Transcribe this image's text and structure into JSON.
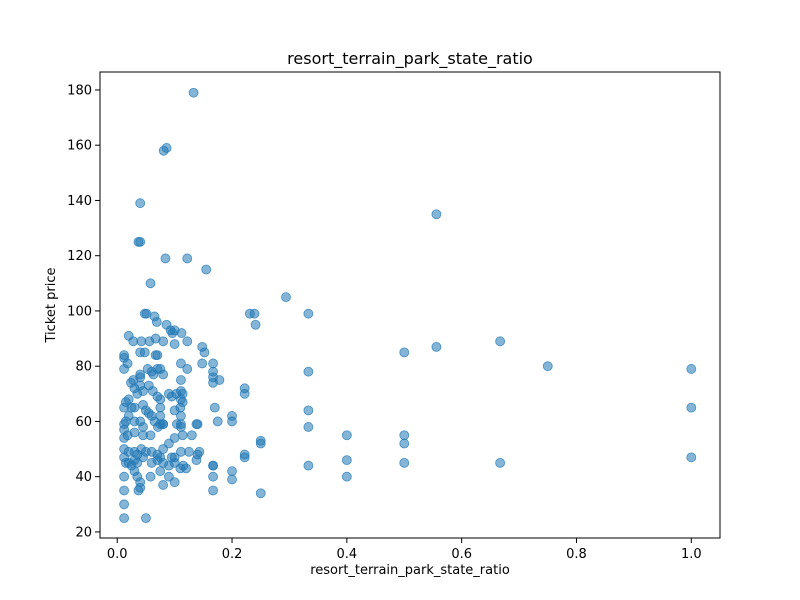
{
  "chart_data": {
    "type": "scatter",
    "title": "resort_terrain_park_state_ratio",
    "xlabel": "resort_terrain_park_state_ratio",
    "ylabel": "Ticket price",
    "xlim": [
      -0.03,
      1.05
    ],
    "ylim": [
      17.8,
      186.5
    ],
    "xticks": [
      0.0,
      0.2,
      0.4,
      0.6,
      0.8,
      1.0
    ],
    "xtick_labels": [
      "0.0",
      "0.2",
      "0.4",
      "0.6",
      "0.8",
      "1.0"
    ],
    "yticks": [
      20,
      40,
      60,
      80,
      100,
      120,
      140,
      160,
      180
    ],
    "ytick_labels": [
      "20",
      "40",
      "60",
      "80",
      "100",
      "120",
      "140",
      "160",
      "180"
    ],
    "grid": false,
    "point_color": "#1f77b4",
    "point_alpha": 0.55,
    "series": [
      {
        "points": [
          [
            0.133,
            179
          ],
          [
            0.081,
            158
          ],
          [
            0.086,
            159
          ],
          [
            0.04,
            139
          ],
          [
            0.556,
            135
          ],
          [
            0.037,
            125
          ],
          [
            0.04,
            125
          ],
          [
            0.084,
            119
          ],
          [
            0.122,
            119
          ],
          [
            0.155,
            115
          ],
          [
            0.058,
            110
          ],
          [
            0.294,
            105
          ],
          [
            0.231,
            99
          ],
          [
            0.239,
            99
          ],
          [
            0.333,
            99
          ],
          [
            0.048,
            99
          ],
          [
            0.051,
            99
          ],
          [
            0.241,
            95
          ],
          [
            0.065,
            98
          ],
          [
            0.069,
            96
          ],
          [
            0.086,
            95
          ],
          [
            0.093,
            93
          ],
          [
            0.096,
            92
          ],
          [
            0.1,
            93
          ],
          [
            0.112,
            92
          ],
          [
            0.02,
            91
          ],
          [
            0.028,
            89
          ],
          [
            0.042,
            89
          ],
          [
            0.056,
            89
          ],
          [
            0.067,
            90
          ],
          [
            0.08,
            89
          ],
          [
            0.1,
            88
          ],
          [
            0.122,
            89
          ],
          [
            0.148,
            87
          ],
          [
            0.152,
            85
          ],
          [
            0.667,
            89
          ],
          [
            0.556,
            87
          ],
          [
            0.5,
            85
          ],
          [
            0.75,
            80
          ],
          [
            1.0,
            79
          ],
          [
            0.012,
            84
          ],
          [
            0.012,
            83
          ],
          [
            0.04,
            85
          ],
          [
            0.048,
            85
          ],
          [
            0.067,
            84
          ],
          [
            0.07,
            84
          ],
          [
            0.111,
            81
          ],
          [
            0.148,
            81
          ],
          [
            0.167,
            81
          ],
          [
            0.333,
            78
          ],
          [
            0.018,
            81
          ],
          [
            0.012,
            79
          ],
          [
            0.028,
            75
          ],
          [
            0.024,
            74
          ],
          [
            0.04,
            77
          ],
          [
            0.04,
            76
          ],
          [
            0.053,
            79
          ],
          [
            0.06,
            78
          ],
          [
            0.063,
            77
          ],
          [
            0.075,
            79
          ],
          [
            0.08,
            77
          ],
          [
            0.07,
            79
          ],
          [
            0.111,
            75
          ],
          [
            0.122,
            79
          ],
          [
            0.167,
            78
          ],
          [
            0.167,
            76
          ],
          [
            0.167,
            74
          ],
          [
            0.178,
            75
          ],
          [
            0.222,
            72
          ],
          [
            0.222,
            70
          ],
          [
            0.03,
            72
          ],
          [
            0.035,
            70
          ],
          [
            0.04,
            73
          ],
          [
            0.045,
            71
          ],
          [
            0.055,
            73
          ],
          [
            0.062,
            71
          ],
          [
            0.07,
            69
          ],
          [
            0.09,
            70
          ],
          [
            0.095,
            69
          ],
          [
            0.103,
            70
          ],
          [
            0.111,
            71
          ],
          [
            0.111,
            68
          ],
          [
            0.114,
            70
          ],
          [
            0.02,
            68
          ],
          [
            0.025,
            65
          ],
          [
            0.015,
            67
          ],
          [
            0.012,
            65
          ],
          [
            0.03,
            65
          ],
          [
            0.045,
            66
          ],
          [
            0.05,
            64
          ],
          [
            0.06,
            62
          ],
          [
            0.075,
            68
          ],
          [
            0.075,
            65
          ],
          [
            0.075,
            62
          ],
          [
            0.1,
            64
          ],
          [
            0.11,
            65
          ],
          [
            0.114,
            67
          ],
          [
            0.17,
            65
          ],
          [
            0.111,
            62
          ],
          [
            0.02,
            62
          ],
          [
            0.03,
            60
          ],
          [
            0.015,
            60
          ],
          [
            0.012,
            59
          ],
          [
            0.04,
            60
          ],
          [
            0.045,
            58
          ],
          [
            0.055,
            63
          ],
          [
            0.065,
            60
          ],
          [
            0.075,
            59
          ],
          [
            0.08,
            59
          ],
          [
            0.104,
            59
          ],
          [
            0.111,
            59
          ],
          [
            0.138,
            59
          ],
          [
            0.14,
            59
          ],
          [
            0.175,
            60
          ],
          [
            0.2,
            62
          ],
          [
            0.2,
            60
          ],
          [
            0.333,
            64
          ],
          [
            0.333,
            58
          ],
          [
            1.0,
            65
          ],
          [
            0.012,
            57
          ],
          [
            0.018,
            55
          ],
          [
            0.012,
            54
          ],
          [
            0.03,
            56
          ],
          [
            0.045,
            55
          ],
          [
            0.058,
            55
          ],
          [
            0.071,
            58
          ],
          [
            0.08,
            59
          ],
          [
            0.111,
            58
          ],
          [
            0.114,
            55
          ],
          [
            0.13,
            55
          ],
          [
            0.4,
            55
          ],
          [
            0.5,
            55
          ],
          [
            0.5,
            52
          ],
          [
            0.25,
            53
          ],
          [
            0.25,
            52
          ],
          [
            0.012,
            50
          ],
          [
            0.02,
            49
          ],
          [
            0.03,
            49
          ],
          [
            0.035,
            48
          ],
          [
            0.042,
            50
          ],
          [
            0.05,
            49
          ],
          [
            0.06,
            49
          ],
          [
            0.07,
            48
          ],
          [
            0.075,
            47
          ],
          [
            0.08,
            50
          ],
          [
            0.09,
            52
          ],
          [
            0.095,
            47
          ],
          [
            0.1,
            47
          ],
          [
            0.1,
            54
          ],
          [
            0.111,
            49
          ],
          [
            0.125,
            49
          ],
          [
            0.14,
            48
          ],
          [
            0.143,
            49
          ],
          [
            0.222,
            48
          ],
          [
            0.222,
            47
          ],
          [
            0.4,
            46
          ],
          [
            0.5,
            45
          ],
          [
            0.667,
            45
          ],
          [
            1.0,
            47
          ],
          [
            0.333,
            44
          ],
          [
            0.012,
            47
          ],
          [
            0.015,
            45
          ],
          [
            0.02,
            45
          ],
          [
            0.025,
            44
          ],
          [
            0.03,
            46
          ],
          [
            0.035,
            45
          ],
          [
            0.045,
            47
          ],
          [
            0.06,
            45
          ],
          [
            0.07,
            46
          ],
          [
            0.075,
            42
          ],
          [
            0.08,
            45
          ],
          [
            0.09,
            44
          ],
          [
            0.1,
            45
          ],
          [
            0.11,
            43
          ],
          [
            0.115,
            44
          ],
          [
            0.12,
            43
          ],
          [
            0.138,
            46
          ],
          [
            0.167,
            44
          ],
          [
            0.167,
            44
          ],
          [
            0.2,
            42
          ],
          [
            0.03,
            42
          ],
          [
            0.035,
            40
          ],
          [
            0.012,
            40
          ],
          [
            0.04,
            38
          ],
          [
            0.04,
            36
          ],
          [
            0.037,
            35
          ],
          [
            0.058,
            40
          ],
          [
            0.08,
            37
          ],
          [
            0.09,
            40
          ],
          [
            0.1,
            38
          ],
          [
            0.167,
            40
          ],
          [
            0.2,
            39
          ],
          [
            0.4,
            40
          ],
          [
            0.167,
            35
          ],
          [
            0.25,
            34
          ],
          [
            0.012,
            35
          ],
          [
            0.012,
            30
          ],
          [
            0.012,
            25
          ],
          [
            0.05,
            25
          ]
        ]
      }
    ]
  }
}
